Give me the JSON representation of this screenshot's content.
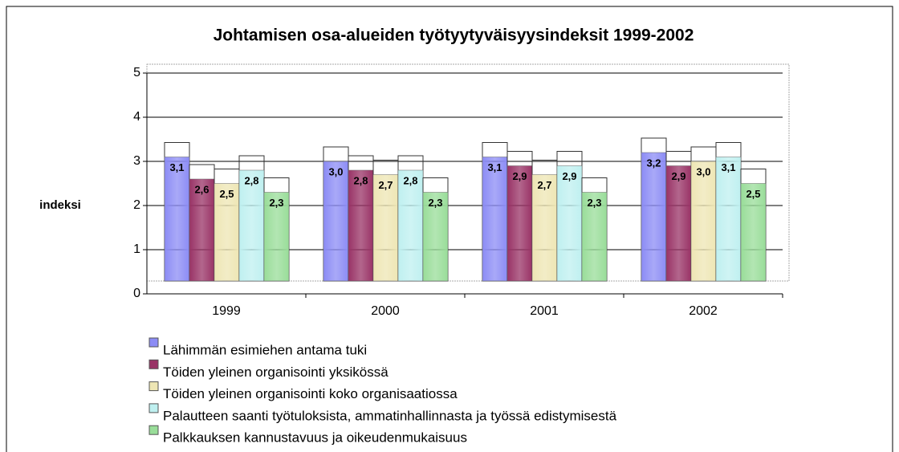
{
  "chart_data": {
    "type": "bar",
    "title": "Johtamisen osa-alueiden työtyytyväisyysindeksit 1999-2002",
    "y_label": "indeksi",
    "categories": [
      "1999",
      "2000",
      "2001",
      "2002"
    ],
    "ylim": [
      0,
      5
    ],
    "yticks": [
      0,
      1,
      2,
      3,
      4,
      5
    ],
    "grid": true,
    "legend": "bottom",
    "series": [
      {
        "name": "Lähimmän esimiehen antama tuki",
        "color": "#8c8cf5",
        "values": [
          3.1,
          3.0,
          3.1,
          3.2
        ],
        "value_labels": [
          "3,1",
          "3,0",
          "3,1",
          "3,2"
        ]
      },
      {
        "name": "Töiden yleinen organisointi yksikössä",
        "color": "#993366",
        "values": [
          2.6,
          2.8,
          2.9,
          2.9
        ],
        "value_labels": [
          "2,6",
          "2,8",
          "2,9",
          "2,9"
        ]
      },
      {
        "name": "Töiden yleinen organisointi koko organisaatiossa",
        "color": "#eee6b4",
        "values": [
          2.5,
          2.7,
          2.7,
          3.0
        ],
        "value_labels": [
          "2,5",
          "2,7",
          "2,7",
          "3,0"
        ]
      },
      {
        "name": "Palautteen saanti työtuloksista, ammatinhallinnasta ja työssä edistymisestä",
        "color": "#bff0f0",
        "values": [
          2.8,
          2.8,
          2.9,
          3.1
        ],
        "value_labels": [
          "2,8",
          "2,8",
          "2,9",
          "3,1"
        ]
      },
      {
        "name": "Palkkauksen kannustavuus ja oikeudenmukaisuus",
        "color": "#99dd99",
        "values": [
          2.3,
          2.3,
          2.3,
          2.5
        ],
        "value_labels": [
          "2,3",
          "2,3",
          "2,3",
          "2,5"
        ]
      }
    ]
  }
}
